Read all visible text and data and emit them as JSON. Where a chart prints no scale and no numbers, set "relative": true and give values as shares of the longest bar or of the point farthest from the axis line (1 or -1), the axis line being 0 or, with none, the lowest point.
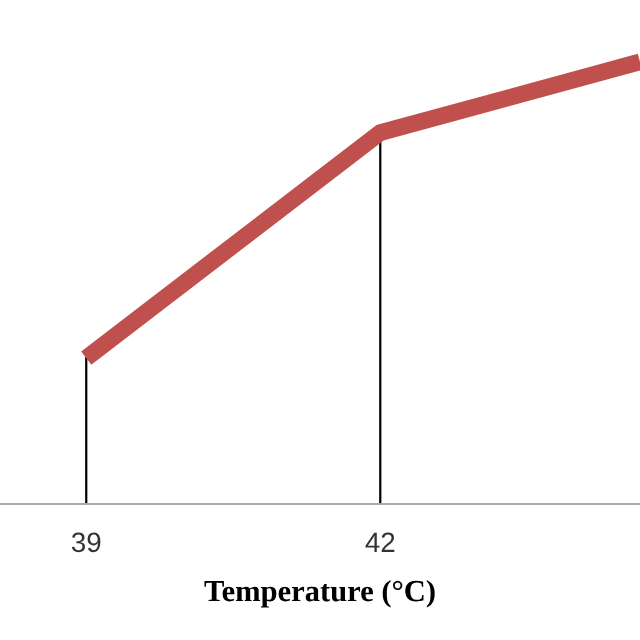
{
  "chart_data": {
    "type": "line",
    "relative": true,
    "xlabel": "Temperature (°C)",
    "x": [
      39,
      42,
      44.65
    ],
    "series": [
      {
        "color": "#c0504d",
        "values": [
          0.33,
          0.84,
          1
        ]
      }
    ],
    "xlim": [
      38.12,
      44.65
    ],
    "xticks": [
      39,
      42
    ],
    "ref_lines": [
      {
        "axis": "x",
        "value": 39,
        "color": "#000000"
      },
      {
        "axis": "x",
        "value": 42,
        "color": "#000000"
      }
    ],
    "grid": false,
    "legend": false,
    "marker": "none",
    "line_style": "solid"
  }
}
